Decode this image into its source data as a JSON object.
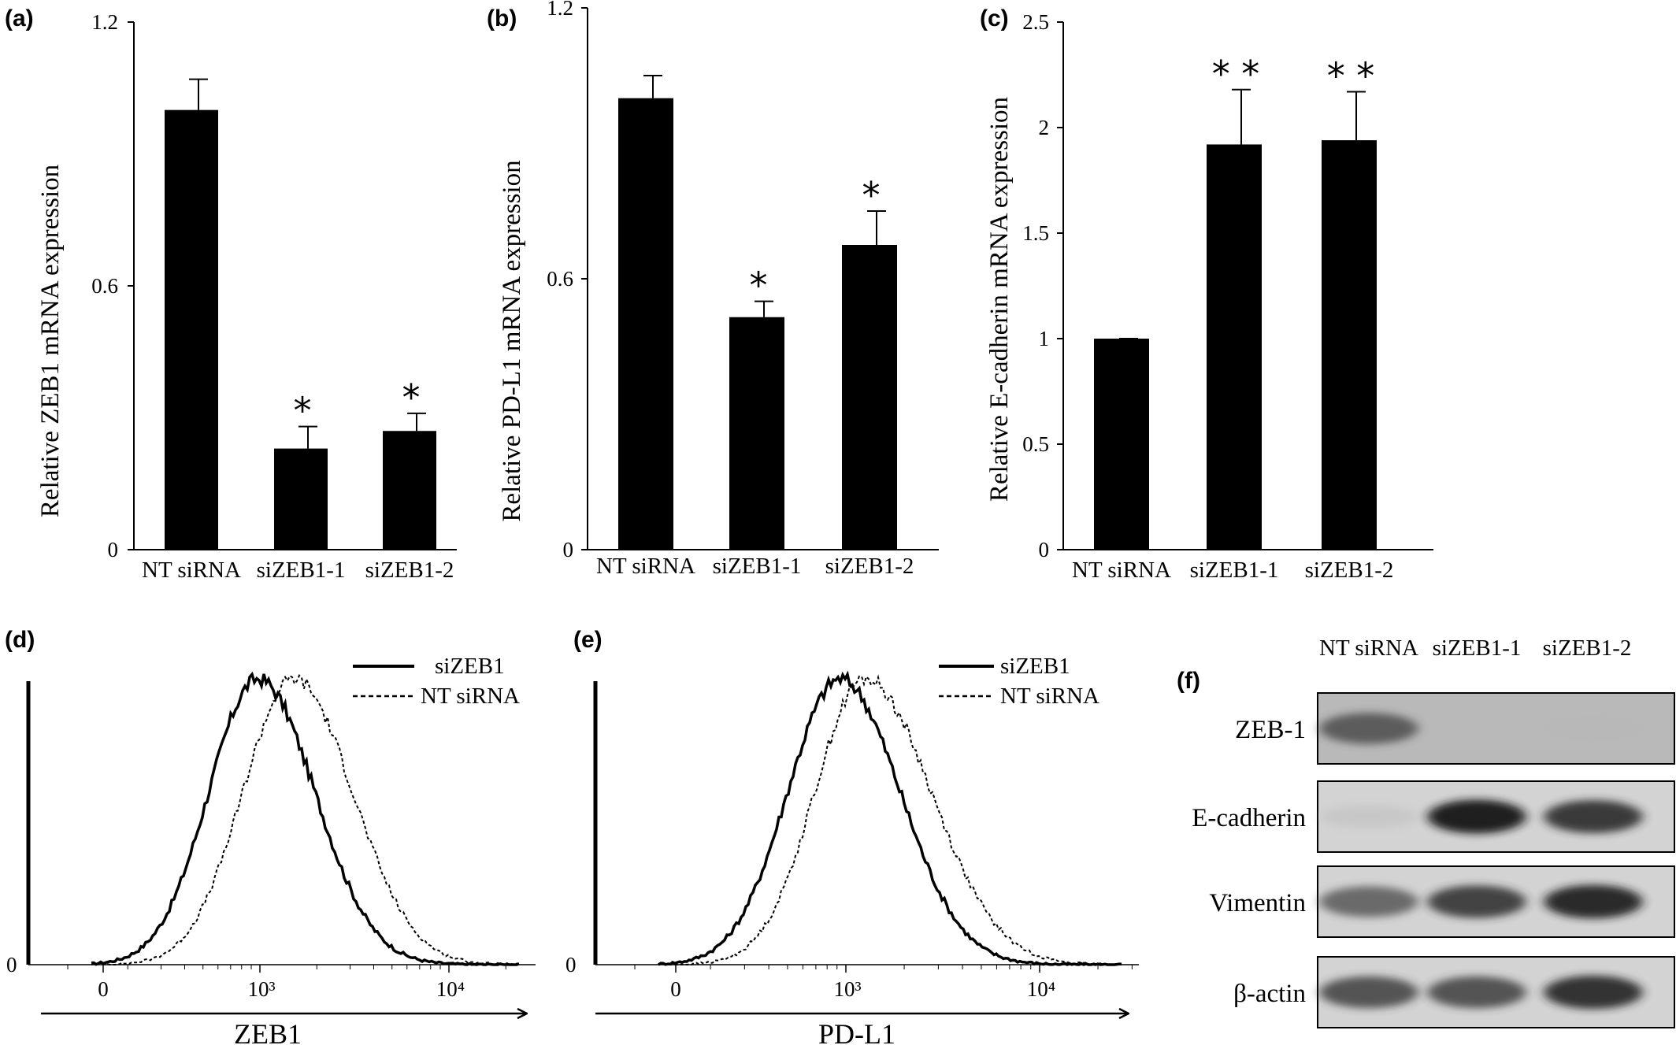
{
  "chart_data": [
    {
      "panel": "(a)",
      "type": "bar",
      "categories": [
        "NT siRNA",
        "siZEB1-1",
        "siZEB1-2"
      ],
      "values": [
        1.0,
        0.23,
        0.27
      ],
      "errors": [
        0.07,
        0.05,
        0.04
      ],
      "significance": [
        "",
        "*",
        "*"
      ],
      "ylabel": "Relative ZEB1 mRNA expression",
      "ylim": [
        0,
        1.2
      ],
      "yticks": [
        "0",
        "0.6",
        "1.2"
      ],
      "ytick_values": [
        0,
        0.6,
        1.2
      ],
      "grid": false
    },
    {
      "panel": "(b)",
      "type": "bar",
      "categories": [
        "NT siRNA",
        "siZEB1-1",
        "siZEB1-2"
      ],
      "values": [
        1.0,
        0.515,
        0.675
      ],
      "errors": [
        0.05,
        0.035,
        0.075
      ],
      "significance": [
        "",
        "*",
        "*"
      ],
      "ylabel": "Relative PD-L1 mRNA expression",
      "ylim": [
        0,
        1.2
      ],
      "yticks": [
        "0",
        "0.6",
        "1.2"
      ],
      "ytick_values": [
        0,
        0.6,
        1.2
      ],
      "grid": false
    },
    {
      "panel": "(c)",
      "type": "bar",
      "categories": [
        "NT siRNA",
        "siZEB1-1",
        "siZEB1-2"
      ],
      "values": [
        1.0,
        1.92,
        1.94
      ],
      "errors": [
        0.0,
        0.26,
        0.23
      ],
      "significance": [
        "",
        "* *",
        "* *"
      ],
      "ylabel": "Relative E-cadherin mRNA expression",
      "ylim": [
        0,
        2.5
      ],
      "yticks": [
        "0",
        "0.5",
        "1",
        "1.5",
        "2",
        "2.5"
      ],
      "ytick_values": [
        0,
        0.5,
        1,
        1.5,
        2,
        2.5
      ],
      "grid": false
    },
    {
      "panel": "(d)",
      "type": "line",
      "xlabel": "ZEB1",
      "xticks": [
        "0",
        "10³",
        "10⁴"
      ],
      "xtick_values": [
        0,
        1000,
        10000
      ],
      "ytick": "0",
      "legend": "top-right",
      "series": [
        {
          "name": "siZEB1",
          "style": "solid",
          "peak_log10": 2.99,
          "sigma_left": 0.26,
          "sigma_right": 0.3
        },
        {
          "name": "NT siRNA",
          "style": "dashed",
          "peak_log10": 3.18,
          "sigma_left": 0.27,
          "sigma_right": 0.31
        }
      ]
    },
    {
      "panel": "(e)",
      "type": "line",
      "xlabel": "PD-L1",
      "xticks": [
        "0",
        "10³",
        "10⁴"
      ],
      "xtick_values": [
        0,
        1000,
        10000
      ],
      "ytick": "0",
      "legend": "top-right",
      "series": [
        {
          "name": "siZEB1",
          "style": "solid",
          "peak_log10": 2.97,
          "sigma_left": 0.27,
          "sigma_right": 0.31
        },
        {
          "name": "NT siRNA",
          "style": "dashed",
          "peak_log10": 3.1,
          "sigma_left": 0.26,
          "sigma_right": 0.34
        }
      ]
    }
  ],
  "western_blot": {
    "panel": "(f)",
    "columns": [
      "NT siRNA",
      "siZEB1-1",
      "siZEB1-2"
    ],
    "rows": [
      {
        "label": "ZEB-1",
        "intensity": [
          0.75,
          0.08,
          0.1
        ]
      },
      {
        "label": "E-cadherin",
        "intensity": [
          0.18,
          0.95,
          0.88
        ]
      },
      {
        "label": "Vimentin",
        "intensity": [
          0.72,
          0.85,
          0.92
        ]
      },
      {
        "label": "β-actin",
        "intensity": [
          0.8,
          0.8,
          0.9
        ]
      }
    ]
  }
}
